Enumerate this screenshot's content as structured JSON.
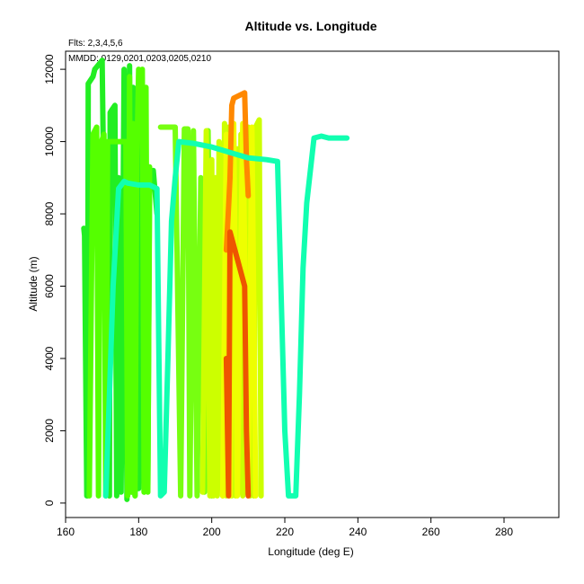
{
  "chart_data": {
    "type": "line",
    "title": "Altitude vs. Longitude",
    "annotations": [
      "Flts: 2,3,4,5,6",
      "MMDD: 0129,0201,0203,0205,0210"
    ],
    "xlabel": "Longitude (deg E)",
    "ylabel": "Altitude (m)",
    "xlim": [
      160,
      295
    ],
    "ylim": [
      -400,
      12500
    ],
    "xticks": [
      160,
      180,
      200,
      220,
      240,
      260,
      280
    ],
    "yticks": [
      0,
      2000,
      4000,
      6000,
      8000,
      10000,
      12000
    ],
    "grid": false,
    "series": [
      {
        "color": "#22ee22",
        "x": [
          165,
          165.2,
          165.8,
          166,
          166.2,
          167.5,
          168,
          170,
          171.5,
          172,
          172.2,
          172.8,
          173.5,
          174,
          174.5,
          175.2,
          176,
          176.8,
          177.5,
          178,
          178.5,
          179,
          179.5,
          180,
          180.5,
          181,
          181.5,
          182,
          182.5,
          183,
          184,
          185
        ],
        "y": [
          7600,
          7400,
          200,
          200,
          11600,
          11800,
          12000,
          12250,
          400,
          200,
          10800,
          10900,
          11000,
          200,
          9000,
          300,
          12000,
          100,
          12100,
          300,
          11500,
          200,
          10000,
          400,
          11000,
          9000,
          300,
          9000,
          400,
          8800,
          9200,
          8000
        ]
      },
      {
        "color": "#55ff00",
        "x": [
          166.5,
          167.5,
          168.5,
          169,
          169.5,
          170.5,
          171,
          171.5,
          176.5,
          177,
          177.5,
          178,
          178.5,
          179,
          179.5,
          180,
          180.5,
          181,
          181.5,
          182,
          182.5,
          183
        ],
        "y": [
          200,
          10200,
          10400,
          200,
          9900,
          10200,
          200,
          10000,
          10000,
          200,
          11800,
          300,
          10500,
          200,
          9500,
          12000,
          11950,
          12000,
          300,
          11500,
          300,
          9300
        ]
      },
      {
        "color": "#77ff11",
        "x": [
          186,
          187,
          188,
          190,
          191.5,
          192.5,
          193.5,
          194,
          195,
          196,
          197,
          198,
          199,
          200
        ],
        "y": [
          10400,
          10400,
          10400,
          10400,
          200,
          10350,
          10350,
          200,
          10300,
          200,
          9000,
          300,
          10300,
          200
        ]
      },
      {
        "color": "#ccff00",
        "x": [
          197.5,
          198.5,
          199.5,
          200,
          200.5,
          201,
          201.5,
          202,
          202.5,
          203,
          203.5,
          204,
          204.5,
          205,
          205.5,
          206,
          206.5,
          207,
          207.5,
          208,
          208.5,
          209,
          209.5,
          210,
          210.5,
          211,
          211.5,
          212,
          212.5,
          213,
          213.5
        ],
        "y": [
          300,
          10300,
          200,
          9500,
          200,
          9000,
          200,
          10000,
          6000,
          200,
          10500,
          200,
          10400,
          6500,
          200,
          10000,
          200,
          9800,
          300,
          10200,
          200,
          9800,
          300,
          10400,
          200,
          10300,
          200,
          10400,
          10500,
          10600,
          200
        ]
      },
      {
        "color": "#eeff00",
        "x": [
          203,
          204,
          205,
          206,
          207,
          208.5,
          210,
          211,
          212
        ],
        "y": [
          200,
          10200,
          200,
          10500,
          200,
          10500,
          300,
          10400,
          200
        ]
      },
      {
        "color": "#ff8800",
        "x": [
          204,
          204.5,
          205,
          205.5,
          206,
          208,
          209,
          209.5,
          210
        ],
        "y": [
          7000,
          8000,
          9000,
          11000,
          11200,
          11300,
          11350,
          9500,
          8500
        ]
      },
      {
        "color": "#ee5500",
        "x": [
          204,
          204.3,
          204.6,
          205,
          209,
          209.5,
          210
        ],
        "y": [
          4000,
          2000,
          200,
          7500,
          6000,
          2000,
          200
        ]
      },
      {
        "color": "#11ffb0",
        "x": [
          171,
          172,
          173,
          174.5,
          176,
          177,
          180,
          183,
          185,
          186,
          187,
          188,
          189,
          190,
          191,
          195,
          200,
          205,
          210,
          215,
          218,
          220,
          221,
          222,
          223,
          224,
          225,
          226,
          228,
          230,
          232,
          234,
          237
        ],
        "y": [
          200,
          3000,
          6000,
          8700,
          8900,
          8850,
          8800,
          8800,
          8700,
          200,
          300,
          4000,
          7800,
          9000,
          10000,
          9950,
          9850,
          9700,
          9550,
          9500,
          9450,
          2000,
          200,
          200,
          200,
          3000,
          6500,
          8300,
          10100,
          10150,
          10100,
          10100,
          10100
        ]
      }
    ]
  }
}
